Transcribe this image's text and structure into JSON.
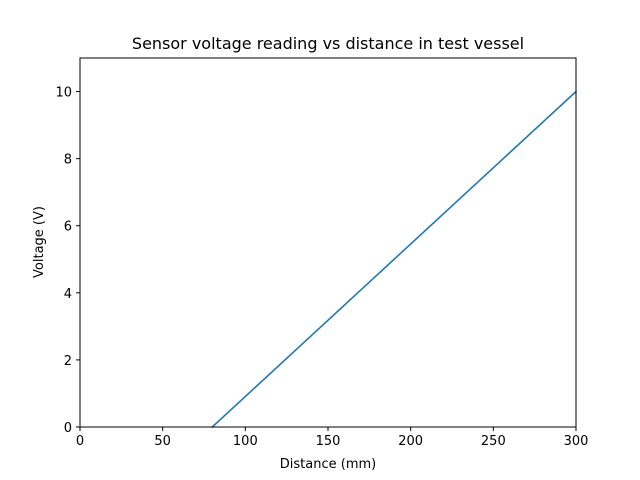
{
  "chart_data": {
    "type": "line",
    "title": "Sensor voltage reading vs distance in test vessel",
    "xlabel": "Distance (mm)",
    "ylabel": "Voltage (V)",
    "xlim": [
      0,
      300
    ],
    "ylim": [
      0,
      11
    ],
    "xticks": [
      0,
      50,
      100,
      150,
      200,
      250,
      300
    ],
    "yticks": [
      0,
      2,
      4,
      6,
      8,
      10
    ],
    "grid": false,
    "series": [
      {
        "color": "#1f77b4",
        "x": [
          80,
          300
        ],
        "y": [
          0,
          10
        ]
      }
    ]
  }
}
